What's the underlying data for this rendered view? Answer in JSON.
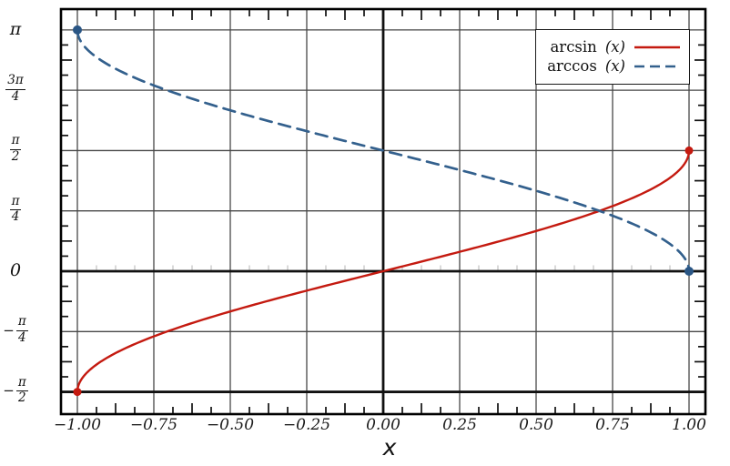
{
  "figure": {
    "xlabel": "x"
  },
  "chart_data": {
    "type": "line",
    "title": "",
    "xlabel": "x",
    "ylabel": "",
    "xlim": [
      -1.054,
      1.054
    ],
    "ylim": [
      -1.861,
      3.415
    ],
    "grid": true,
    "legend_position": "upper right",
    "x_ticks": [
      {
        "value": -1.0,
        "label": "−1.00"
      },
      {
        "value": -0.75,
        "label": "−0.75"
      },
      {
        "value": -0.5,
        "label": "−0.50"
      },
      {
        "value": -0.25,
        "label": "−0.25"
      },
      {
        "value": 0.0,
        "label": "0.00"
      },
      {
        "value": 0.25,
        "label": "0.25"
      },
      {
        "value": 0.5,
        "label": "0.50"
      },
      {
        "value": 0.75,
        "label": "0.75"
      },
      {
        "value": 1.0,
        "label": "1.00"
      }
    ],
    "y_ticks": [
      {
        "value": 3.14159,
        "kind": "plain",
        "label": "π"
      },
      {
        "value": 2.35619,
        "kind": "frac",
        "sign": "",
        "num": "3π",
        "den": "4",
        "label": "3π/4"
      },
      {
        "value": 1.5708,
        "kind": "frac",
        "sign": "",
        "num": "π",
        "den": "2",
        "label": "π/2"
      },
      {
        "value": 0.7854,
        "kind": "frac",
        "sign": "",
        "num": "π",
        "den": "4",
        "label": "π/4"
      },
      {
        "value": 0.0,
        "kind": "plain",
        "label": "0"
      },
      {
        "value": -0.7854,
        "kind": "frac",
        "sign": "−",
        "num": "π",
        "den": "4",
        "label": "−π/4"
      },
      {
        "value": -1.5708,
        "kind": "frac",
        "sign": "−",
        "num": "π",
        "den": "2",
        "label": "−π/2"
      }
    ],
    "reference_lines": [
      {
        "axis": "x",
        "value": 0
      },
      {
        "axis": "y",
        "value": 0
      },
      {
        "axis": "y",
        "value": -1.5708
      }
    ],
    "colors": {
      "background": "#ffffff",
      "grid": "#474747",
      "spine": "#000000",
      "axis_line": "#111111",
      "arcsin": "#c41a10",
      "arccos": "#33608d"
    },
    "series": [
      {
        "name": "arcsin (x)",
        "legend_prefix": "arcsin ",
        "legend_var": "(x)",
        "fn": "asin",
        "line_style": "solid",
        "line_width": 2.4,
        "color": "#c41a10",
        "marker_color": "#c41a10",
        "marker_size": 4.5,
        "endpoints": [
          [
            -1,
            -1.5708
          ],
          [
            1,
            1.5708
          ]
        ],
        "x": [
          -1,
          -0.9,
          -0.8,
          -0.7,
          -0.6,
          -0.5,
          -0.4,
          -0.3,
          -0.2,
          -0.1,
          0,
          0.1,
          0.2,
          0.3,
          0.4,
          0.5,
          0.6,
          0.7,
          0.8,
          0.9,
          1
        ],
        "y": [
          -1.571,
          -1.12,
          -0.927,
          -0.775,
          -0.644,
          -0.524,
          -0.412,
          -0.305,
          -0.201,
          -0.1,
          0,
          0.1,
          0.201,
          0.305,
          0.412,
          0.524,
          0.644,
          0.775,
          0.927,
          1.12,
          1.571
        ]
      },
      {
        "name": "arccos(x)",
        "legend_prefix": "arccos",
        "legend_var": "(x)",
        "fn": "acos",
        "line_style": "dashed",
        "line_width": 2.7,
        "color": "#33608d",
        "marker_color": "#2a5685",
        "marker_size": 5,
        "endpoints": [
          [
            -1,
            3.14159
          ],
          [
            1,
            0
          ]
        ],
        "x": [
          -1,
          -0.9,
          -0.8,
          -0.7,
          -0.6,
          -0.5,
          -0.4,
          -0.3,
          -0.2,
          -0.1,
          0,
          0.1,
          0.2,
          0.3,
          0.4,
          0.5,
          0.6,
          0.7,
          0.8,
          0.9,
          1
        ],
        "y": [
          3.142,
          2.691,
          2.498,
          2.346,
          2.214,
          2.094,
          1.982,
          1.875,
          1.772,
          1.671,
          1.571,
          1.471,
          1.369,
          1.266,
          1.159,
          1.047,
          0.927,
          0.795,
          0.644,
          0.451,
          0
        ]
      }
    ]
  }
}
